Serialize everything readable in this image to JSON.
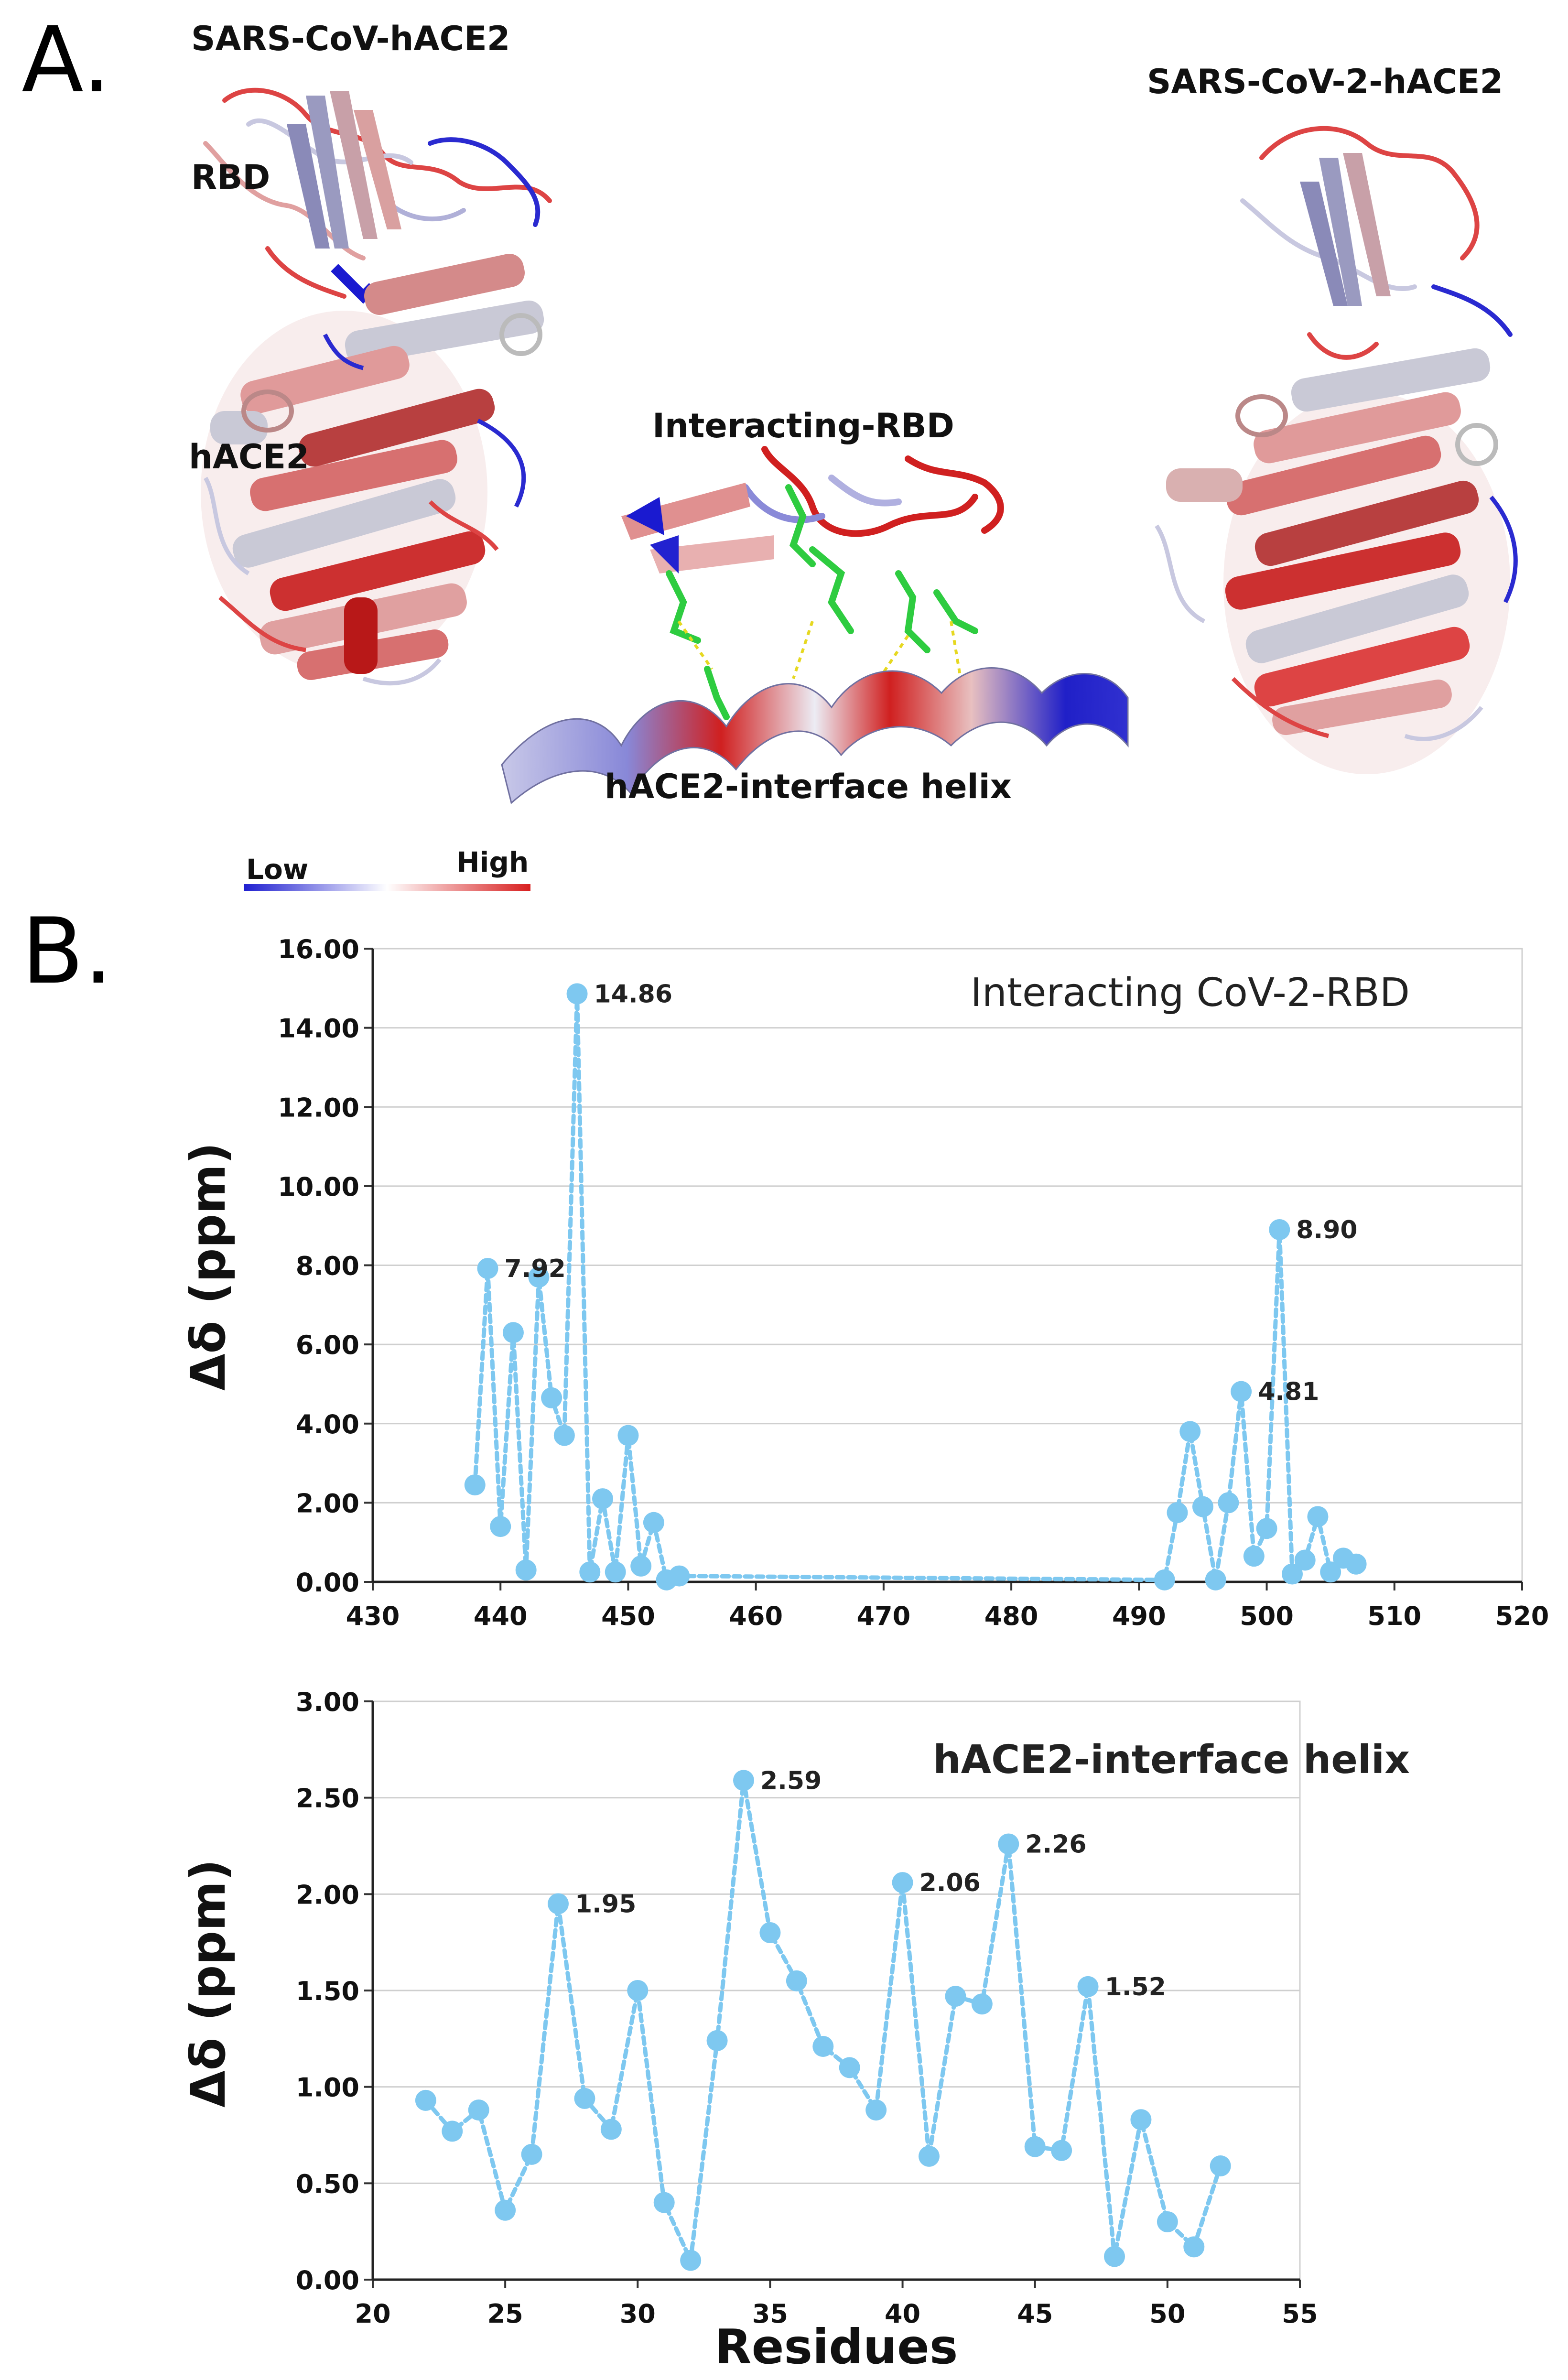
{
  "panel_a": {
    "letter": "A.",
    "left_title": "SARS-CoV-hACE2",
    "right_title": "SARS-CoV-2-hACE2",
    "label_rbd": "RBD",
    "label_hace2": "hACE2",
    "label_interacting_rbd": "Interacting-RBD",
    "label_helix": "hACE2-interface helix",
    "scale_low": "Low",
    "scale_high": "High",
    "colors": {
      "low": "#1f1fd0",
      "high": "#d81f1f",
      "mid": "#e8e8ee",
      "ligand": "#2ecc40"
    }
  },
  "panel_b": {
    "letter": "B."
  },
  "chart_data": [
    {
      "type": "line",
      "title": "Interacting CoV-2-RBD",
      "xlabel": "",
      "ylabel": "Δδ (ppm)",
      "xlim": [
        430,
        520
      ],
      "ylim": [
        0,
        16
      ],
      "xticks": [
        "430",
        "440",
        "450",
        "460",
        "470",
        "480",
        "490",
        "500",
        "510",
        "520"
      ],
      "yticks": [
        "0.00",
        "2.00",
        "4.00",
        "6.00",
        "8.00",
        "10.00",
        "12.00",
        "14.00",
        "16.00"
      ],
      "grid": true,
      "color": "#7ec8f0",
      "x": [
        438,
        439,
        440,
        441,
        442,
        443,
        444,
        445,
        446,
        447,
        448,
        449,
        450,
        451,
        452,
        453,
        454,
        492,
        493,
        494,
        495,
        496,
        497,
        498,
        499,
        500,
        501,
        502,
        503,
        504,
        505,
        506,
        507
      ],
      "y": [
        2.45,
        7.92,
        1.4,
        6.3,
        0.3,
        7.7,
        4.65,
        3.7,
        14.86,
        0.25,
        2.1,
        0.25,
        3.7,
        0.4,
        1.5,
        0.05,
        0.15,
        0.05,
        1.75,
        3.8,
        1.9,
        0.05,
        2.0,
        4.81,
        0.65,
        1.35,
        8.9,
        0.2,
        0.55,
        1.65,
        0.25,
        0.6,
        0.45
      ],
      "labels": [
        {
          "x": 439,
          "text": "7.92"
        },
        {
          "x": 446,
          "text": "14.86"
        },
        {
          "x": 501,
          "text": "8.90"
        },
        {
          "x": 498,
          "text": "4.81"
        }
      ]
    },
    {
      "type": "line",
      "title": "hACE2-interface helix",
      "xlabel": "Residues",
      "ylabel": "Δδ (ppm)",
      "xlim": [
        20,
        55
      ],
      "ylim": [
        0,
        3
      ],
      "xticks": [
        "20",
        "25",
        "30",
        "35",
        "40",
        "45",
        "50",
        "55"
      ],
      "yticks": [
        "0.00",
        "0.50",
        "1.00",
        "1.50",
        "2.00",
        "2.50",
        "3.00"
      ],
      "grid": true,
      "color": "#7ec8f0",
      "x": [
        22,
        23,
        24,
        25,
        26,
        27,
        28,
        29,
        30,
        31,
        32,
        33,
        34,
        35,
        36,
        37,
        38,
        39,
        40,
        41,
        42,
        43,
        44,
        45,
        46,
        47,
        48,
        49,
        50,
        51,
        52
      ],
      "y": [
        0.93,
        0.77,
        0.88,
        0.36,
        0.65,
        1.95,
        0.94,
        0.78,
        1.5,
        0.4,
        0.1,
        1.24,
        2.59,
        1.8,
        1.55,
        1.21,
        1.1,
        0.88,
        2.06,
        0.64,
        1.47,
        1.43,
        2.26,
        0.69,
        0.67,
        1.52,
        0.12,
        0.83,
        0.3,
        0.17,
        0.59
      ],
      "labels": [
        {
          "x": 27,
          "text": "1.95"
        },
        {
          "x": 34,
          "text": "2.59"
        },
        {
          "x": 40,
          "text": "2.06"
        },
        {
          "x": 44,
          "text": "2.26"
        },
        {
          "x": 47,
          "text": "1.52"
        }
      ]
    }
  ]
}
